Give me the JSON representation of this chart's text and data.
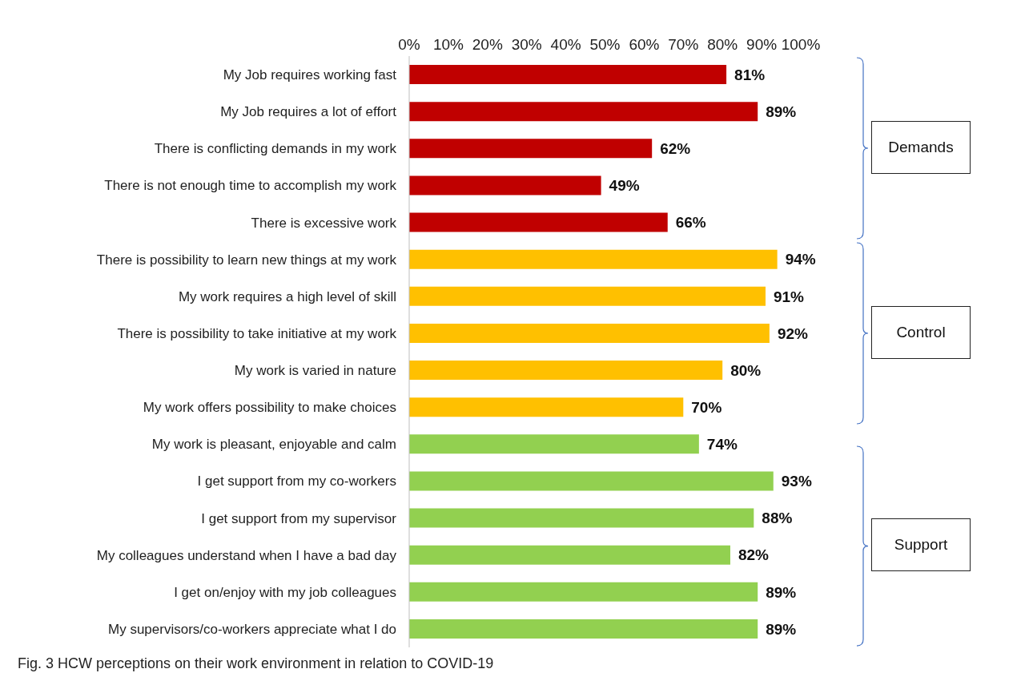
{
  "chart_data": {
    "type": "bar",
    "orientation": "horizontal",
    "categories": [
      "My Job requires working fast",
      "My Job requires a lot of effort",
      "There is conflicting demands in my work",
      "There is not enough time to accomplish my work",
      "There is excessive work",
      "There is possibility to learn new things at my work",
      "My work requires a high level of skill",
      "There is possibility to take initiative at my work",
      "My work is varied in nature",
      "My work offers possibility to make choices",
      "My work is pleasant, enjoyable and calm",
      "I get support from my co-workers",
      "I get support from my supervisor",
      "My colleagues understand when I have a bad day",
      "I get on/enjoy with my job colleagues",
      "My supervisors/co-workers appreciate what I do"
    ],
    "values": [
      81,
      89,
      62,
      49,
      66,
      94,
      91,
      92,
      80,
      70,
      74,
      93,
      88,
      82,
      89,
      89
    ],
    "colors": [
      "#c00000",
      "#c00000",
      "#c00000",
      "#c00000",
      "#c00000",
      "#ffc000",
      "#ffc000",
      "#ffc000",
      "#ffc000",
      "#ffc000",
      "#92d050",
      "#92d050",
      "#92d050",
      "#92d050",
      "#92d050",
      "#92d050"
    ],
    "value_labels": [
      "81%",
      "89%",
      "62%",
      "49%",
      "66%",
      "94%",
      "91%",
      "92%",
      "80%",
      "70%",
      "74%",
      "93%",
      "88%",
      "82%",
      "89%",
      "89%"
    ],
    "xlim": [
      0,
      100
    ],
    "xticks": [
      {
        "value": 0,
        "label": "0%"
      },
      {
        "value": 10,
        "label": "10%"
      },
      {
        "value": 20,
        "label": "20%"
      },
      {
        "value": 30,
        "label": "30%"
      },
      {
        "value": 40,
        "label": "40%"
      },
      {
        "value": 50,
        "label": "50%"
      },
      {
        "value": 60,
        "label": "60%"
      },
      {
        "value": 70,
        "label": "70%"
      },
      {
        "value": 80,
        "label": "80%"
      },
      {
        "value": 90,
        "label": "90%"
      },
      {
        "value": 100,
        "label": "100%"
      }
    ],
    "grid": false,
    "annotations": [
      "Demands",
      "Control",
      "Support",
      "Fig. 3 HCW perceptions on their work environment in relation to COVID-19"
    ]
  }
}
